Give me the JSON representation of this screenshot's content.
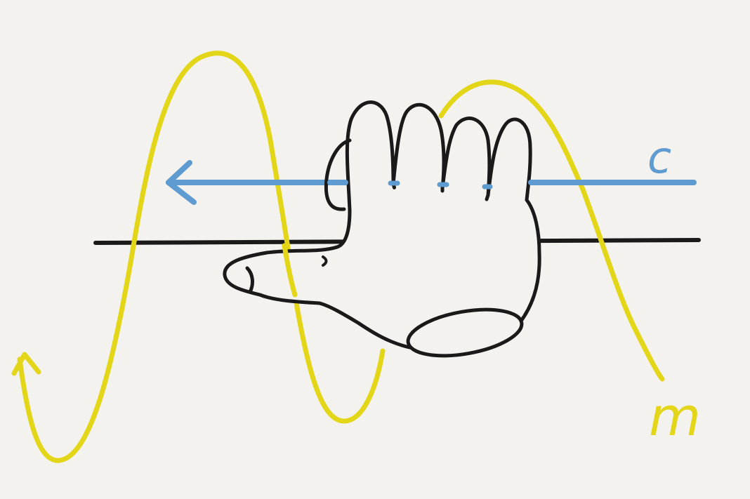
{
  "labels": {
    "c": "c",
    "m": "m"
  },
  "colors": {
    "background": "#f4f2ee",
    "wave": "#e3d618",
    "arrow": "#5e9bd0",
    "axis": "#1a1a1a",
    "hand_outline": "#1a1a1a",
    "hand_fill": "#f4f2ee"
  },
  "icons": {
    "hand": "right-hand-icon",
    "wave": "oscillating-wave",
    "arrow": "left-arrow"
  }
}
